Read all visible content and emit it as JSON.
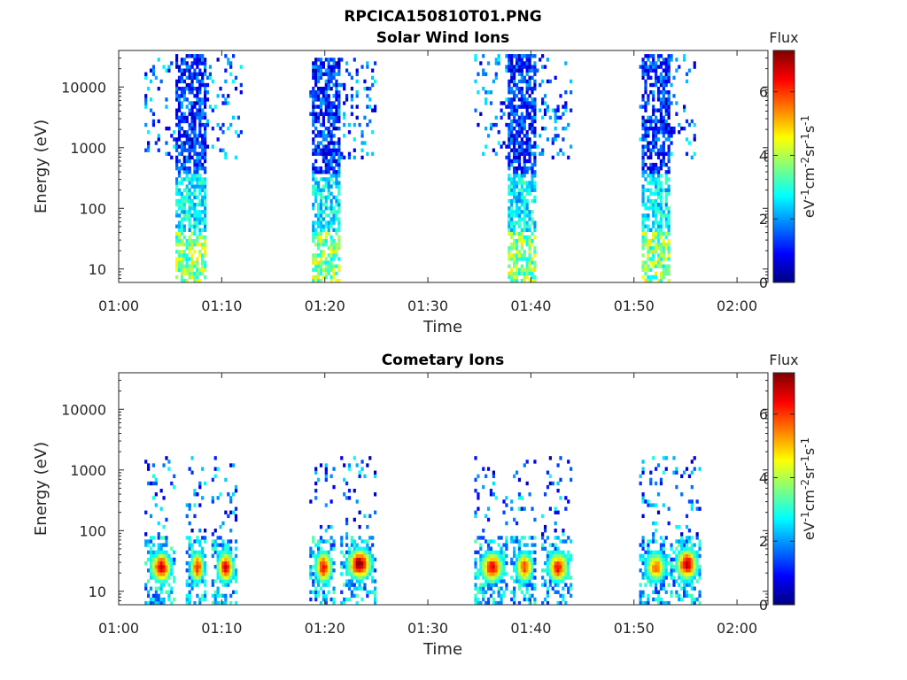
{
  "figure_title": "RPCICA150810T01.PNG",
  "chart_data": [
    {
      "type": "heatmap",
      "title": "Solar Wind Ions",
      "xlabel": "Time",
      "ylabel": "Energy (eV)",
      "yscale": "log",
      "xlim": [
        "01:00",
        "02:03"
      ],
      "ylim": [
        6,
        40000
      ],
      "x_ticks": [
        "01:00",
        "01:10",
        "01:20",
        "01:30",
        "01:40",
        "01:50",
        "02:00"
      ],
      "y_ticks": [
        "10",
        "100",
        "1000",
        "10000"
      ],
      "colorbar": {
        "label": "Flux",
        "unit": "eV-1cm-2sr-1s-1",
        "range": [
          0,
          7.3
        ],
        "ticks": [
          "0",
          "2",
          "4",
          "6"
        ],
        "colormap": "jet"
      },
      "bursts": [
        {
          "start": "01:02:30",
          "end": "01:12:00",
          "core_start": "01:05:30",
          "core_end": "01:08:30",
          "e_min": 6,
          "e_max": 35000
        },
        {
          "start": "01:18:30",
          "end": "01:25:00",
          "core_start": "01:18:45",
          "core_end": "01:21:30",
          "e_min": 6,
          "e_max": 30000
        },
        {
          "start": "01:34:30",
          "end": "01:44:00",
          "core_start": "01:37:45",
          "core_end": "01:40:30",
          "e_min": 6,
          "e_max": 35000
        },
        {
          "start": "01:50:30",
          "end": "01:56:00",
          "core_start": "01:50:45",
          "core_end": "01:53:30",
          "e_min": 6,
          "e_max": 35000
        }
      ]
    },
    {
      "type": "heatmap",
      "title": "Cometary Ions",
      "xlabel": "Time",
      "ylabel": "Energy (eV)",
      "yscale": "log",
      "xlim": [
        "01:00",
        "02:03"
      ],
      "ylim": [
        6,
        40000
      ],
      "x_ticks": [
        "01:00",
        "01:10",
        "01:20",
        "01:30",
        "01:40",
        "01:50",
        "02:00"
      ],
      "y_ticks": [
        "10",
        "100",
        "1000",
        "10000"
      ],
      "colorbar": {
        "label": "Flux",
        "unit": "eV-1cm-2sr-1s-1",
        "range": [
          0,
          7.3
        ],
        "ticks": [
          "0",
          "2",
          "4",
          "6"
        ],
        "colormap": "jet"
      },
      "bursts": [
        {
          "start": "01:02:30",
          "end": "01:05:30",
          "peak_energy": 25,
          "peak_flux": 6.8
        },
        {
          "start": "01:06:30",
          "end": "01:08:30",
          "peak_energy": 25,
          "peak_flux": 6.3
        },
        {
          "start": "01:09:00",
          "end": "01:11:30",
          "peak_energy": 25,
          "peak_flux": 6.6
        },
        {
          "start": "01:18:30",
          "end": "01:21:00",
          "peak_energy": 25,
          "peak_flux": 6.5
        },
        {
          "start": "01:21:30",
          "end": "01:25:00",
          "peak_energy": 28,
          "peak_flux": 7.2
        },
        {
          "start": "01:34:30",
          "end": "01:37:45",
          "peak_energy": 25,
          "peak_flux": 6.6
        },
        {
          "start": "01:38:00",
          "end": "01:40:30",
          "peak_energy": 25,
          "peak_flux": 6.0
        },
        {
          "start": "01:41:00",
          "end": "01:44:00",
          "peak_energy": 25,
          "peak_flux": 6.4
        },
        {
          "start": "01:50:30",
          "end": "01:53:30",
          "peak_energy": 25,
          "peak_flux": 5.6
        },
        {
          "start": "01:53:30",
          "end": "01:56:30",
          "peak_energy": 28,
          "peak_flux": 7.0
        }
      ]
    }
  ]
}
